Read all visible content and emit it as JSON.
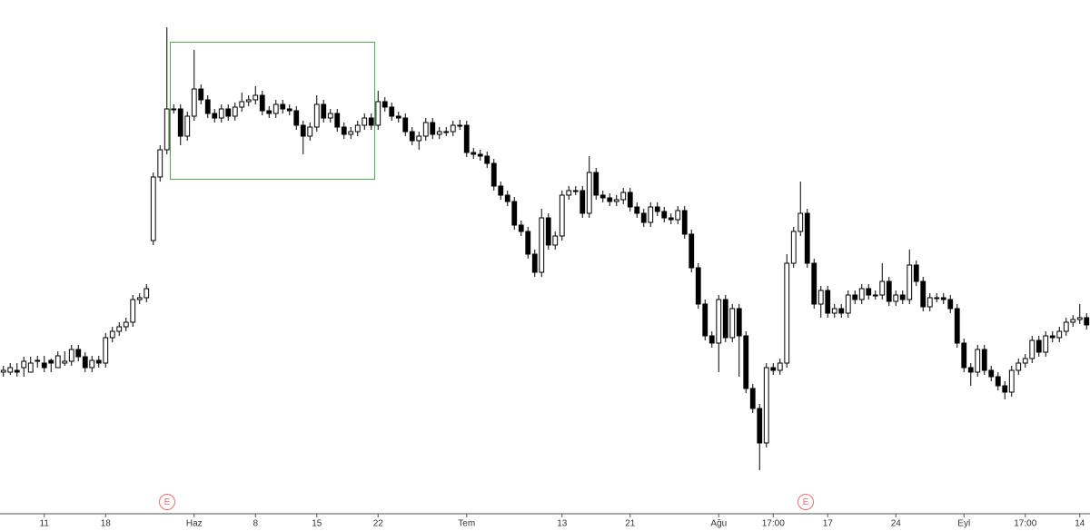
{
  "chart_data": {
    "type": "candlestick",
    "categories": [
      null,
      null,
      null,
      null,
      null,
      null,
      "11",
      null,
      null,
      null,
      null,
      null,
      null,
      null,
      null,
      "18",
      null,
      null,
      null,
      null,
      null,
      null,
      null,
      null,
      null,
      null,
      null,
      null,
      "Haz",
      null,
      null,
      null,
      null,
      null,
      null,
      null,
      null,
      "8",
      null,
      null,
      null,
      null,
      null,
      null,
      null,
      null,
      "15",
      null,
      null,
      null,
      null,
      null,
      null,
      null,
      null,
      "22",
      null,
      null,
      null,
      null,
      null,
      null,
      null,
      null,
      null,
      null,
      null,
      null,
      "Tem",
      null,
      null,
      null,
      null,
      null,
      null,
      null,
      null,
      null,
      null,
      null,
      null,
      null,
      "13",
      null,
      null,
      null,
      null,
      null,
      null,
      null,
      null,
      null,
      "21",
      null,
      null,
      null,
      null,
      null,
      null,
      null,
      null,
      null,
      null,
      null,
      null,
      "Ağu",
      null,
      null,
      null,
      null,
      null,
      null,
      null,
      "17:00",
      null,
      null,
      null,
      null,
      null,
      null,
      null,
      "17",
      null,
      null,
      null,
      null,
      null,
      null,
      null,
      null,
      null,
      "24",
      null,
      null,
      null,
      null,
      null,
      null,
      null,
      null,
      null,
      "Eyl",
      null,
      null,
      null,
      null,
      null,
      null,
      null,
      null,
      "17:00",
      null,
      null,
      null,
      null,
      null,
      null,
      null,
      "14",
      null
    ],
    "open": [
      150,
      150,
      152,
      155,
      150,
      162,
      160,
      163,
      155,
      160,
      162,
      175,
      167,
      155,
      163,
      160,
      188,
      195,
      200,
      205,
      230,
      232,
      295,
      365,
      395,
      440,
      440,
      410,
      432,
      462,
      450,
      435,
      430,
      440,
      432,
      442,
      448,
      450,
      455,
      438,
      435,
      445,
      440,
      438,
      422,
      410,
      420,
      445,
      430,
      435,
      420,
      412,
      415,
      422,
      430,
      422,
      448,
      442,
      432,
      430,
      415,
      405,
      410,
      425,
      412,
      415,
      415,
      422,
      422,
      392,
      390,
      388,
      380,
      355,
      345,
      338,
      312,
      305,
      280,
      260,
      320,
      290,
      300,
      345,
      350,
      350,
      325,
      370,
      345,
      342,
      338,
      340,
      348,
      332,
      325,
      315,
      332,
      327,
      320,
      318,
      328,
      302,
      265,
      225,
      190,
      182,
      230,
      188,
      220,
      190,
      132,
      110,
      72,
      155,
      152,
      160,
      270,
      305,
      325,
      270,
      225,
      240,
      215,
      220,
      215,
      235,
      230,
      242,
      235,
      235,
      250,
      228,
      235,
      230,
      268,
      250,
      222,
      232,
      232,
      230,
      220,
      182,
      155,
      150,
      175,
      152,
      145,
      135,
      128,
      152,
      160,
      165,
      185,
      172,
      190,
      188,
      195,
      205,
      208,
      210
    ],
    "high": [
      157,
      160,
      160,
      167,
      167,
      168,
      168,
      165,
      173,
      173,
      180,
      180,
      172,
      168,
      168,
      193,
      200,
      205,
      210,
      235,
      237,
      247,
      370,
      400,
      530,
      445,
      445,
      437,
      505,
      467,
      455,
      440,
      445,
      445,
      447,
      458,
      455,
      465,
      460,
      443,
      450,
      450,
      445,
      443,
      427,
      425,
      455,
      450,
      440,
      440,
      425,
      420,
      427,
      435,
      435,
      460,
      453,
      447,
      437,
      435,
      420,
      415,
      430,
      430,
      420,
      420,
      427,
      428,
      427,
      397,
      395,
      393,
      385,
      360,
      350,
      343,
      317,
      310,
      285,
      330,
      325,
      305,
      350,
      355,
      355,
      355,
      388,
      375,
      350,
      347,
      345,
      353,
      353,
      337,
      330,
      337,
      337,
      332,
      325,
      333,
      333,
      307,
      270,
      230,
      195,
      235,
      235,
      225,
      225,
      195,
      137,
      115,
      160,
      160,
      165,
      280,
      310,
      360,
      330,
      275,
      245,
      245,
      225,
      225,
      240,
      240,
      247,
      247,
      240,
      270,
      255,
      240,
      240,
      285,
      273,
      255,
      237,
      237,
      237,
      235,
      225,
      187,
      160,
      180,
      180,
      157,
      150,
      140,
      157,
      165,
      170,
      190,
      190,
      195,
      195,
      200,
      210,
      213,
      225,
      215
    ],
    "low": [
      145,
      147,
      145,
      145,
      155,
      155,
      150,
      150,
      155,
      157,
      157,
      162,
      150,
      150,
      155,
      155,
      183,
      190,
      195,
      200,
      225,
      227,
      290,
      360,
      390,
      435,
      400,
      405,
      427,
      445,
      430,
      425,
      425,
      427,
      427,
      437,
      443,
      445,
      433,
      430,
      430,
      435,
      433,
      417,
      390,
      405,
      415,
      425,
      425,
      415,
      407,
      407,
      410,
      417,
      417,
      417,
      437,
      427,
      425,
      410,
      400,
      395,
      405,
      407,
      407,
      410,
      410,
      417,
      387,
      385,
      383,
      375,
      350,
      340,
      333,
      307,
      300,
      275,
      255,
      255,
      285,
      285,
      295,
      340,
      345,
      320,
      320,
      340,
      337,
      333,
      333,
      335,
      327,
      320,
      310,
      310,
      322,
      315,
      313,
      313,
      297,
      260,
      220,
      185,
      177,
      150,
      183,
      183,
      145,
      127,
      105,
      42,
      67,
      147,
      147,
      155,
      265,
      300,
      265,
      220,
      210,
      210,
      210,
      210,
      210,
      225,
      225,
      230,
      230,
      230,
      223,
      223,
      225,
      225,
      245,
      217,
      217,
      227,
      225,
      215,
      177,
      150,
      135,
      145,
      147,
      140,
      130,
      120,
      123,
      147,
      155,
      160,
      167,
      167,
      183,
      183,
      190,
      200,
      203,
      197
    ],
    "close": [
      152,
      155,
      150,
      162,
      160,
      163,
      155,
      160,
      168,
      162,
      175,
      167,
      155,
      163,
      160,
      188,
      195,
      200,
      205,
      230,
      232,
      242,
      365,
      395,
      440,
      440,
      410,
      432,
      462,
      450,
      435,
      430,
      440,
      432,
      442,
      448,
      450,
      455,
      438,
      435,
      445,
      440,
      438,
      422,
      410,
      420,
      445,
      430,
      435,
      420,
      412,
      415,
      422,
      430,
      422,
      448,
      442,
      432,
      430,
      415,
      405,
      410,
      425,
      412,
      415,
      415,
      422,
      422,
      392,
      390,
      388,
      380,
      355,
      345,
      338,
      312,
      305,
      280,
      260,
      320,
      290,
      300,
      345,
      350,
      350,
      325,
      370,
      345,
      342,
      338,
      340,
      348,
      332,
      325,
      315,
      332,
      327,
      320,
      318,
      328,
      302,
      265,
      225,
      190,
      182,
      230,
      188,
      220,
      190,
      132,
      110,
      72,
      155,
      152,
      160,
      270,
      305,
      325,
      270,
      225,
      240,
      215,
      220,
      215,
      235,
      230,
      242,
      235,
      235,
      250,
      228,
      235,
      230,
      268,
      250,
      222,
      232,
      232,
      230,
      220,
      182,
      155,
      150,
      175,
      152,
      145,
      135,
      128,
      152,
      160,
      165,
      185,
      172,
      190,
      188,
      195,
      205,
      208,
      210,
      202
    ],
    "ylim": [
      0,
      560
    ],
    "up_color": "#ffffff",
    "down_color": "#000000",
    "wick_color": "#000000",
    "markers": [
      "E",
      "E"
    ]
  }
}
